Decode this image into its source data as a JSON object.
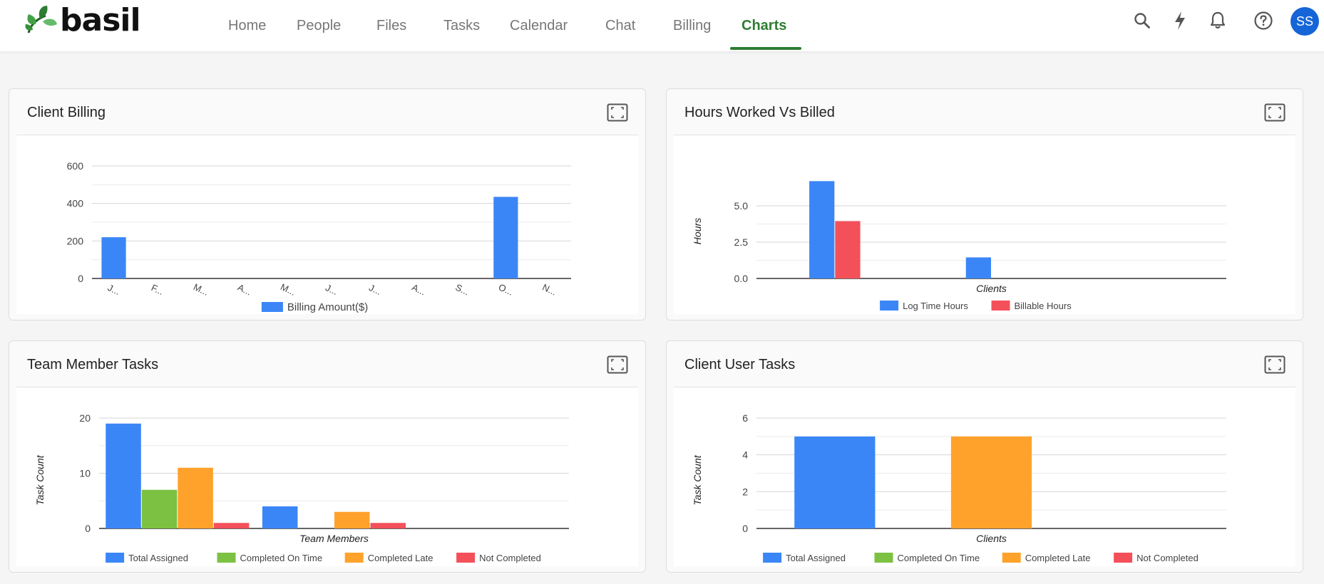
{
  "app": {
    "logo_text": "basil",
    "user_initials": "SS"
  },
  "nav": {
    "items": [
      {
        "label": "Home",
        "active": false
      },
      {
        "label": "People",
        "active": false
      },
      {
        "label": "Files",
        "active": false
      },
      {
        "label": "Tasks",
        "active": false
      },
      {
        "label": "Calendar",
        "active": false
      },
      {
        "label": "Chat",
        "active": false
      },
      {
        "label": "Billing",
        "active": false
      },
      {
        "label": "Charts",
        "active": true
      }
    ]
  },
  "toolbar_icons": [
    "search-icon",
    "bolt-icon",
    "bell-icon",
    "help-icon"
  ],
  "colors": {
    "brand_green": "#2e7d32",
    "blue": "#3b86f7",
    "green": "#7cc142",
    "orange": "#ffa22b",
    "red": "#f4505a",
    "avatar": "#1565d8"
  },
  "cards": {
    "client_billing": {
      "title": "Client Billing"
    },
    "hours": {
      "title": "Hours Worked Vs Billed"
    },
    "team_tasks": {
      "title": "Team Member Tasks"
    },
    "client_tasks": {
      "title": "Client User Tasks"
    }
  },
  "chart_data": [
    {
      "id": "client_billing",
      "type": "bar",
      "categories": [
        "J...",
        "F...",
        "M...",
        "A...",
        "M...",
        "J...",
        "J...",
        "A...",
        "S...",
        "O...",
        "N..."
      ],
      "series": [
        {
          "name": "Billing Amount($)",
          "color": "#3b86f7",
          "values": [
            220,
            0,
            0,
            0,
            0,
            0,
            0,
            0,
            0,
            435,
            0
          ]
        }
      ],
      "yticks": [
        0,
        200,
        400,
        600
      ],
      "ylim": [
        0,
        600
      ],
      "xlabel": "",
      "ylabel": "",
      "legend": "bottom"
    },
    {
      "id": "hours",
      "type": "bar",
      "categories": [
        "",
        "",
        ""
      ],
      "series": [
        {
          "name": "Log Time Hours",
          "color": "#3b86f7",
          "values": [
            6.7,
            1.45,
            0
          ]
        },
        {
          "name": "Billable Hours",
          "color": "#f4505a",
          "values": [
            3.95,
            0,
            0
          ]
        }
      ],
      "yticks": [
        0.0,
        2.5,
        5.0
      ],
      "ytick_labels": [
        "0.0",
        "2.5",
        "5.0"
      ],
      "ylim": [
        0,
        7.5
      ],
      "xlabel": "Clients",
      "ylabel": "Hours",
      "legend": "bottom"
    },
    {
      "id": "team_tasks",
      "type": "bar",
      "categories": [
        "",
        "",
        ""
      ],
      "series": [
        {
          "name": "Total Assigned",
          "color": "#3b86f7",
          "values": [
            19,
            4,
            0
          ]
        },
        {
          "name": "Completed On Time",
          "color": "#7cc142",
          "values": [
            7,
            0,
            0
          ]
        },
        {
          "name": "Completed Late",
          "color": "#ffa22b",
          "values": [
            11,
            3,
            0
          ]
        },
        {
          "name": "Not Completed",
          "color": "#f4505a",
          "values": [
            1,
            1,
            0
          ]
        }
      ],
      "yticks": [
        0,
        10,
        20
      ],
      "ylim": [
        0,
        20
      ],
      "xlabel": "Team Members",
      "ylabel": "Task Count",
      "legend": "bottom"
    },
    {
      "id": "client_tasks",
      "type": "bar",
      "categories": [
        "",
        "",
        ""
      ],
      "series": [
        {
          "name": "Total Assigned",
          "color": "#3b86f7",
          "values": [
            5,
            0,
            0
          ]
        },
        {
          "name": "Completed On Time",
          "color": "#7cc142",
          "values": [
            0,
            0,
            0
          ]
        },
        {
          "name": "Completed Late",
          "color": "#ffa22b",
          "values": [
            0,
            5,
            0
          ]
        },
        {
          "name": "Not Completed",
          "color": "#f4505a",
          "values": [
            0,
            0,
            0
          ]
        }
      ],
      "yticks": [
        0,
        2,
        4,
        6
      ],
      "ylim": [
        0,
        6
      ],
      "xlabel": "Clients",
      "ylabel": "Task Count",
      "legend": "bottom"
    }
  ]
}
